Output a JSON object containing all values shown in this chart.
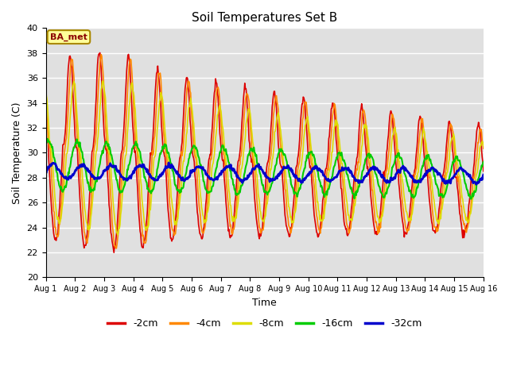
{
  "title": "Soil Temperatures Set B",
  "xlabel": "Time",
  "ylabel": "Soil Temperature (C)",
  "ylim": [
    20,
    40
  ],
  "annotation": "BA_met",
  "legend_labels": [
    "-2cm",
    "-4cm",
    "-8cm",
    "-16cm",
    "-32cm"
  ],
  "legend_colors": [
    "#dd0000",
    "#ff8800",
    "#dddd00",
    "#00cc00",
    "#0000cc"
  ],
  "bg_color": "#e0e0e0",
  "line_widths": [
    1.2,
    1.2,
    1.2,
    1.5,
    2.0
  ],
  "xtick_labels": [
    "Aug 1",
    "Aug 2",
    "Aug 3",
    "Aug 4",
    "Aug 5",
    "Aug 6",
    "Aug 7",
    "Aug 8",
    "Aug 9",
    "Aug 10",
    "Aug 11",
    "Aug 12",
    "Aug 13",
    "Aug 14",
    "Aug 15",
    "Aug 16"
  ],
  "ytick_labels": [
    "20",
    "22",
    "24",
    "26",
    "28",
    "30",
    "32",
    "34",
    "36",
    "38",
    "40"
  ],
  "figsize": [
    6.4,
    4.8
  ],
  "dpi": 100
}
